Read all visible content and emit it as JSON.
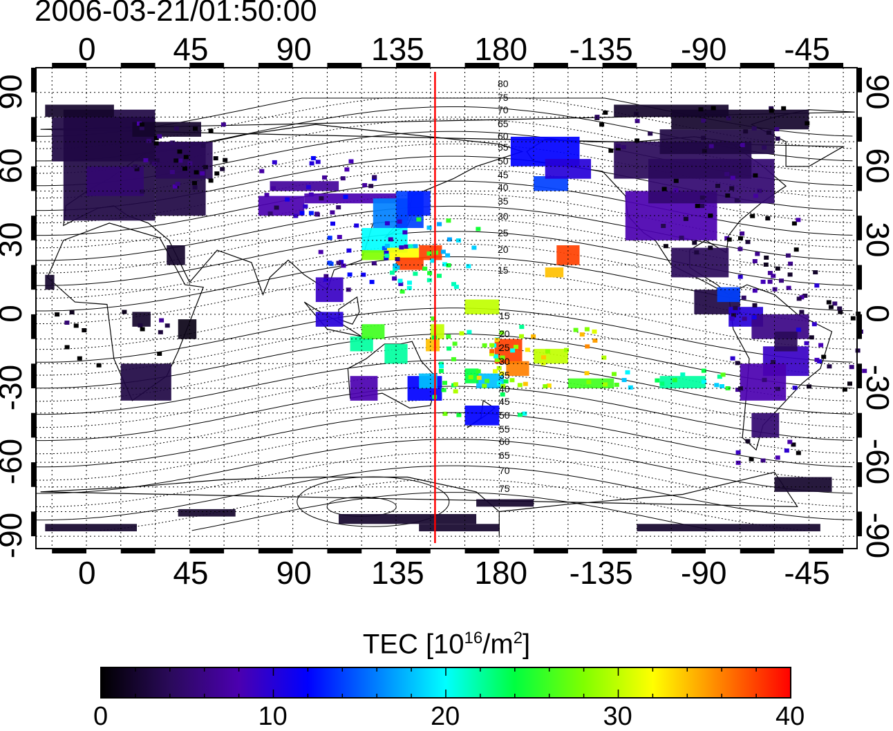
{
  "title": "2006-03-21/01:50:00",
  "map": {
    "lon_ticks_top": [
      "0",
      "45",
      "90",
      "135",
      "180",
      "-135",
      "-90",
      "-45"
    ],
    "lon_ticks_bottom": [
      "0",
      "45",
      "90",
      "135",
      "180",
      "-135",
      "-90",
      "-45"
    ],
    "lat_ticks_left": [
      "90",
      "60",
      "30",
      "0",
      "-30",
      "-60",
      "-90"
    ],
    "lat_ticks_right": [
      "90",
      "60",
      "30",
      "0",
      "-30",
      "-60",
      "-90"
    ],
    "lon_range": [
      -22,
      336
    ],
    "lat_range": [
      -95,
      100
    ],
    "grid": "dotted",
    "terminator_lon": 152,
    "terminator_color": "#ff0000",
    "contour_labels": [
      "80",
      "75",
      "70",
      "65",
      "60",
      "55",
      "50",
      "45",
      "40",
      "35",
      "30",
      "25",
      "20",
      "15",
      "15",
      "20",
      "25",
      "30",
      "35",
      "40",
      "45",
      "50",
      "55",
      "60",
      "65",
      "70",
      "75"
    ]
  },
  "colorbar": {
    "label": "TEC  [10",
    "label_exp": "16",
    "label_unit": "/m",
    "label_unit_exp": "2",
    "label_end": "]",
    "ticks": [
      "0",
      "10",
      "20",
      "30",
      "40"
    ],
    "range": [
      0,
      40
    ],
    "colormap": [
      "#000000",
      "#2a0a5a",
      "#4b00b0",
      "#0000ff",
      "#0080ff",
      "#00ffff",
      "#00ff40",
      "#80ff00",
      "#ffff00",
      "#ff8000",
      "#ff0000"
    ]
  }
}
